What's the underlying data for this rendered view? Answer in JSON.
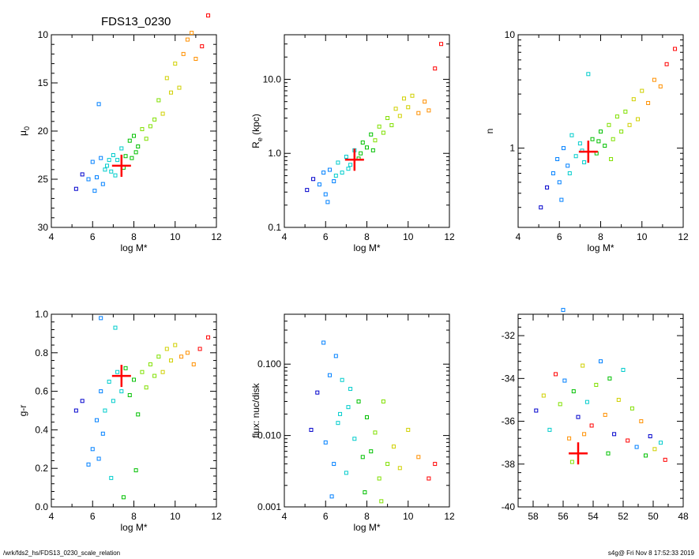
{
  "figure": {
    "title": "FDS13_0230",
    "footer_left": "/wrk/fds2_hs/FDS13_0230_scale_relation",
    "footer_right": "s4g@  Fri Nov  8 17:52:33 2019"
  },
  "colors": {
    "marker_red": "#ff0000",
    "palette": [
      "#0000cc",
      "#0080ff",
      "#00cccc",
      "#00c000",
      "#80e000",
      "#d0d000",
      "#ff9000",
      "#ff0000"
    ]
  },
  "chart_data": [
    {
      "id": "mu0",
      "type": "scatter",
      "xlabel": "log M*",
      "ylabel_main": "μ",
      "ylabel_sub": "0",
      "xlim": [
        4,
        12
      ],
      "ylim": [
        30,
        10
      ],
      "yscale": "linear",
      "xticks": [
        "4",
        "6",
        "8",
        "10",
        "12"
      ],
      "yticks": [
        "10",
        "15",
        "20",
        "25",
        "30"
      ],
      "highlight": {
        "x": 7.4,
        "y": 23.6
      },
      "points": [
        [
          5.2,
          26.0
        ],
        [
          5.5,
          24.5
        ],
        [
          5.8,
          25.0
        ],
        [
          6.0,
          23.2
        ],
        [
          6.2,
          24.8
        ],
        [
          6.4,
          22.8
        ],
        [
          6.5,
          25.5
        ],
        [
          6.7,
          23.6
        ],
        [
          6.9,
          24.2
        ],
        [
          7.0,
          22.5
        ],
        [
          7.2,
          23.0
        ],
        [
          7.4,
          21.8
        ],
        [
          7.6,
          22.6
        ],
        [
          7.8,
          21.0
        ],
        [
          8.0,
          20.5
        ],
        [
          8.2,
          21.6
        ],
        [
          8.4,
          19.8
        ],
        [
          8.6,
          20.8
        ],
        [
          8.8,
          19.5
        ],
        [
          9.0,
          18.8
        ],
        [
          9.2,
          16.8
        ],
        [
          9.4,
          18.2
        ],
        [
          9.6,
          14.5
        ],
        [
          9.8,
          16.0
        ],
        [
          10.0,
          13.0
        ],
        [
          10.2,
          15.5
        ],
        [
          10.4,
          12.0
        ],
        [
          10.6,
          10.5
        ],
        [
          10.8,
          9.8
        ],
        [
          11.0,
          12.5
        ],
        [
          11.3,
          11.2
        ],
        [
          11.6,
          8.0
        ],
        [
          6.1,
          26.2
        ],
        [
          6.6,
          24.0
        ],
        [
          7.1,
          24.6
        ],
        [
          7.5,
          23.8
        ],
        [
          8.1,
          22.2
        ],
        [
          6.3,
          17.2
        ],
        [
          6.8,
          23.0
        ],
        [
          7.9,
          22.8
        ]
      ]
    },
    {
      "id": "re",
      "type": "scatter",
      "xlabel": "log M*",
      "ylabel_main": "R",
      "ylabel_sub": "e",
      "ylabel_tail": " (kpc)",
      "xlim": [
        4,
        12
      ],
      "ylim": [
        0.1,
        40
      ],
      "yscale": "log",
      "xticks": [
        "4",
        "6",
        "8",
        "10",
        "12"
      ],
      "yticks": [
        {
          "v": 0.1,
          "label": "0.1"
        },
        {
          "v": 1,
          "label": "1.0"
        },
        {
          "v": 10,
          "label": "10.0"
        }
      ],
      "highlight": {
        "x": 7.4,
        "y": 0.82
      },
      "points": [
        [
          5.1,
          0.32
        ],
        [
          5.4,
          0.45
        ],
        [
          5.7,
          0.38
        ],
        [
          5.9,
          0.55
        ],
        [
          6.0,
          0.28
        ],
        [
          6.2,
          0.6
        ],
        [
          6.4,
          0.42
        ],
        [
          6.6,
          0.75
        ],
        [
          6.8,
          0.55
        ],
        [
          7.0,
          0.9
        ],
        [
          7.2,
          0.7
        ],
        [
          7.4,
          1.1
        ],
        [
          7.6,
          0.85
        ],
        [
          7.8,
          1.4
        ],
        [
          8.0,
          1.2
        ],
        [
          8.2,
          1.8
        ],
        [
          8.4,
          1.5
        ],
        [
          8.6,
          2.3
        ],
        [
          8.8,
          1.9
        ],
        [
          9.0,
          3.0
        ],
        [
          9.2,
          2.4
        ],
        [
          9.4,
          4.0
        ],
        [
          9.6,
          3.2
        ],
        [
          9.8,
          5.5
        ],
        [
          10.0,
          4.2
        ],
        [
          10.2,
          6.0
        ],
        [
          10.5,
          3.5
        ],
        [
          10.8,
          5.0
        ],
        [
          11.0,
          3.8
        ],
        [
          11.3,
          14.0
        ],
        [
          11.6,
          30.0
        ],
        [
          6.1,
          0.22
        ],
        [
          6.5,
          0.5
        ],
        [
          7.1,
          0.62
        ],
        [
          7.7,
          1.0
        ],
        [
          8.3,
          1.1
        ]
      ]
    },
    {
      "id": "n",
      "type": "scatter",
      "xlabel": "log M*",
      "ylabel_main": "n",
      "xlim": [
        4,
        12
      ],
      "ylim": [
        0.2,
        10
      ],
      "yscale": "log",
      "xticks": [
        "4",
        "6",
        "8",
        "10",
        "12"
      ],
      "yticks": [
        {
          "v": 1,
          "label": "1"
        },
        {
          "v": 10,
          "label": "10"
        }
      ],
      "highlight": {
        "x": 7.4,
        "y": 0.93
      },
      "points": [
        [
          5.1,
          0.3
        ],
        [
          5.4,
          0.45
        ],
        [
          5.7,
          0.6
        ],
        [
          5.9,
          0.8
        ],
        [
          6.0,
          0.5
        ],
        [
          6.2,
          1.0
        ],
        [
          6.4,
          0.7
        ],
        [
          6.6,
          1.3
        ],
        [
          6.8,
          0.85
        ],
        [
          7.0,
          1.1
        ],
        [
          7.2,
          0.75
        ],
        [
          7.4,
          4.5
        ],
        [
          7.6,
          1.2
        ],
        [
          7.8,
          0.9
        ],
        [
          8.0,
          1.4
        ],
        [
          8.2,
          1.05
        ],
        [
          8.4,
          1.6
        ],
        [
          8.6,
          1.2
        ],
        [
          8.8,
          1.9
        ],
        [
          9.0,
          1.4
        ],
        [
          9.2,
          2.1
        ],
        [
          9.4,
          1.6
        ],
        [
          9.6,
          2.7
        ],
        [
          9.8,
          1.8
        ],
        [
          10.0,
          3.2
        ],
        [
          10.3,
          2.5
        ],
        [
          10.6,
          4.0
        ],
        [
          10.9,
          3.5
        ],
        [
          11.2,
          5.5
        ],
        [
          11.6,
          7.5
        ],
        [
          6.1,
          0.35
        ],
        [
          6.5,
          0.6
        ],
        [
          7.1,
          0.95
        ],
        [
          7.9,
          1.15
        ],
        [
          8.5,
          0.8
        ]
      ]
    },
    {
      "id": "gr",
      "type": "scatter",
      "xlabel": "log M*",
      "ylabel_main": "g-r",
      "xlim": [
        4,
        12
      ],
      "ylim": [
        0.0,
        1.0
      ],
      "yscale": "linear",
      "xticks": [
        "4",
        "6",
        "8",
        "10",
        "12"
      ],
      "yticks": [
        "0.0",
        "0.2",
        "0.4",
        "0.6",
        "0.8",
        "1.0"
      ],
      "highlight": {
        "x": 7.4,
        "y": 0.68
      },
      "points": [
        [
          5.2,
          0.5
        ],
        [
          5.5,
          0.55
        ],
        [
          5.8,
          0.22
        ],
        [
          6.0,
          0.3
        ],
        [
          6.2,
          0.45
        ],
        [
          6.3,
          0.25
        ],
        [
          6.4,
          0.6
        ],
        [
          6.5,
          0.38
        ],
        [
          6.6,
          0.5
        ],
        [
          6.8,
          0.65
        ],
        [
          7.0,
          0.55
        ],
        [
          7.2,
          0.7
        ],
        [
          7.4,
          0.6
        ],
        [
          7.6,
          0.72
        ],
        [
          7.8,
          0.58
        ],
        [
          8.0,
          0.66
        ],
        [
          8.2,
          0.48
        ],
        [
          8.4,
          0.7
        ],
        [
          8.6,
          0.62
        ],
        [
          8.8,
          0.74
        ],
        [
          9.0,
          0.68
        ],
        [
          9.2,
          0.78
        ],
        [
          9.4,
          0.7
        ],
        [
          9.6,
          0.82
        ],
        [
          9.8,
          0.76
        ],
        [
          10.0,
          0.84
        ],
        [
          10.3,
          0.78
        ],
        [
          10.6,
          0.8
        ],
        [
          10.9,
          0.74
        ],
        [
          11.2,
          0.82
        ],
        [
          11.6,
          0.88
        ],
        [
          6.4,
          0.98
        ],
        [
          7.5,
          0.05
        ],
        [
          7.1,
          0.93
        ],
        [
          8.1,
          0.19
        ],
        [
          6.9,
          0.15
        ]
      ]
    },
    {
      "id": "flux",
      "type": "scatter",
      "xlabel": "log M*",
      "ylabel_main": "flux: nuc/disk",
      "xlim": [
        4,
        12
      ],
      "ylim": [
        0.001,
        0.5
      ],
      "yscale": "log",
      "xticks": [
        "4",
        "6",
        "8",
        "10",
        "12"
      ],
      "yticks": [
        {
          "v": 0.001,
          "label": "0.001"
        },
        {
          "v": 0.01,
          "label": "0.010"
        },
        {
          "v": 0.1,
          "label": "0.100"
        }
      ],
      "points": [
        [
          5.3,
          0.012
        ],
        [
          5.6,
          0.04
        ],
        [
          5.9,
          0.2
        ],
        [
          6.0,
          0.008
        ],
        [
          6.2,
          0.07
        ],
        [
          6.4,
          0.004
        ],
        [
          6.5,
          0.13
        ],
        [
          6.7,
          0.02
        ],
        [
          6.8,
          0.06
        ],
        [
          7.0,
          0.003
        ],
        [
          7.2,
          0.045
        ],
        [
          7.4,
          0.009
        ],
        [
          7.6,
          0.03
        ],
        [
          7.8,
          0.005
        ],
        [
          8.0,
          0.018
        ],
        [
          8.2,
          0.006
        ],
        [
          8.4,
          0.011
        ],
        [
          8.6,
          0.0025
        ],
        [
          8.8,
          0.03
        ],
        [
          9.0,
          0.004
        ],
        [
          9.3,
          0.007
        ],
        [
          9.6,
          0.0035
        ],
        [
          10.0,
          0.012
        ],
        [
          10.5,
          0.005
        ],
        [
          11.0,
          0.0025
        ],
        [
          11.3,
          0.004
        ],
        [
          6.3,
          0.0014
        ],
        [
          7.9,
          0.0016
        ],
        [
          8.7,
          0.0012
        ],
        [
          6.6,
          0.015
        ],
        [
          7.1,
          0.025
        ]
      ]
    },
    {
      "id": "coords",
      "type": "scatter",
      "xlabel": "",
      "ylabel_main": "",
      "xlim": [
        59,
        48
      ],
      "ylim": [
        -40,
        -31
      ],
      "yscale": "linear",
      "xticks": [
        "58",
        "56",
        "54",
        "52",
        "50",
        "48"
      ],
      "yticks": [
        "-40",
        "-38",
        "-36",
        "-34",
        "-32"
      ],
      "highlight": {
        "x": 55.0,
        "y": -37.5
      },
      "points": [
        [
          57.8,
          -35.5
        ],
        [
          57.3,
          -34.8
        ],
        [
          56.9,
          -36.4
        ],
        [
          56.5,
          -33.8
        ],
        [
          56.2,
          -35.2
        ],
        [
          55.9,
          -34.1
        ],
        [
          55.6,
          -36.8
        ],
        [
          55.3,
          -34.6
        ],
        [
          55.0,
          -35.8
        ],
        [
          54.7,
          -33.4
        ],
        [
          54.4,
          -35.1
        ],
        [
          54.1,
          -36.2
        ],
        [
          53.8,
          -34.3
        ],
        [
          53.5,
          -33.2
        ],
        [
          53.2,
          -35.7
        ],
        [
          52.9,
          -34.0
        ],
        [
          52.6,
          -36.6
        ],
        [
          52.3,
          -35.0
        ],
        [
          52.0,
          -33.6
        ],
        [
          51.7,
          -36.9
        ],
        [
          51.4,
          -35.4
        ],
        [
          51.1,
          -37.2
        ],
        [
          50.8,
          -36.0
        ],
        [
          50.5,
          -37.6
        ],
        [
          50.2,
          -36.7
        ],
        [
          49.9,
          -37.3
        ],
        [
          49.5,
          -37.0
        ],
        [
          49.2,
          -37.8
        ],
        [
          55.4,
          -37.9
        ],
        [
          56.0,
          -30.8
        ],
        [
          54.6,
          -36.6
        ],
        [
          53.0,
          -37.5
        ]
      ]
    }
  ]
}
